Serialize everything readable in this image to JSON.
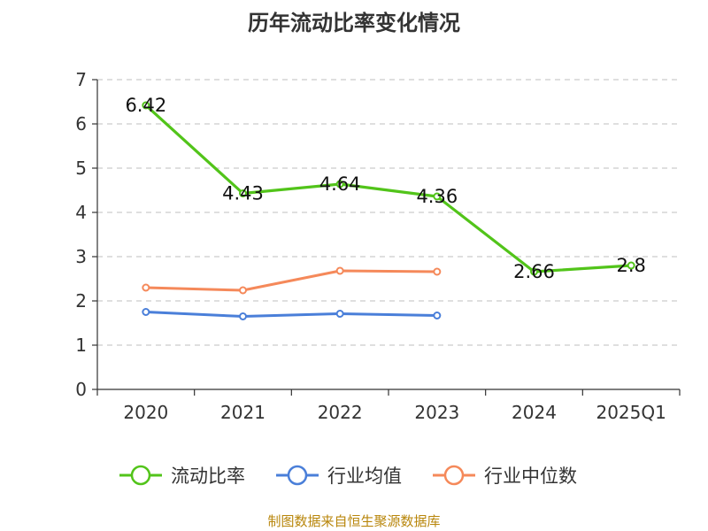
{
  "title": "历年流动比率变化情况",
  "source_note": "制图数据来自恒生聚源数据库",
  "chart_data": {
    "type": "line",
    "categories": [
      "2020",
      "2021",
      "2022",
      "2023",
      "2024",
      "2025Q1"
    ],
    "ylim": [
      0,
      7
    ],
    "yticks": [
      0,
      1,
      2,
      3,
      4,
      5,
      6,
      7
    ],
    "grid": true,
    "legend_position": "bottom",
    "series": [
      {
        "name": "流动比率",
        "color": "#52c41a",
        "values": [
          6.42,
          4.43,
          4.64,
          4.36,
          2.66,
          2.8
        ],
        "labels": [
          "6.42",
          "4.43",
          "4.64",
          "4.36",
          "2.66",
          "2.8"
        ]
      },
      {
        "name": "行业均值",
        "color": "#4a7fd9",
        "values": [
          1.75,
          1.65,
          1.71,
          1.67,
          null,
          null
        ]
      },
      {
        "name": "行业中位数",
        "color": "#f5895a",
        "values": [
          2.3,
          2.24,
          2.68,
          2.66,
          null,
          null
        ]
      }
    ]
  }
}
